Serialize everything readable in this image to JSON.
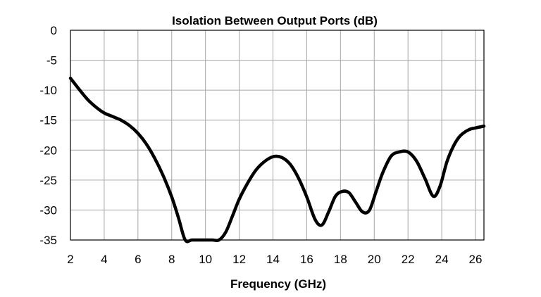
{
  "chart_data": {
    "type": "line",
    "title": "Isolation Between Output Ports (dB)",
    "xlabel": "Frequency (GHz)",
    "ylabel": "",
    "xlim": [
      2,
      26.5
    ],
    "ylim": [
      -35,
      0
    ],
    "x_ticks": [
      2,
      4,
      6,
      8,
      10,
      12,
      14,
      16,
      18,
      20,
      22,
      24,
      26
    ],
    "y_ticks": [
      0,
      -5,
      -10,
      -15,
      -20,
      -25,
      -30,
      -35
    ],
    "grid": true,
    "legend": "none",
    "series": [
      {
        "color": "#000000",
        "x": [
          2,
          2.5,
          3,
          3.5,
          4,
          4.5,
          5,
          5.5,
          6,
          6.5,
          7,
          7.5,
          8,
          8.4,
          8.8,
          9.2,
          9.8,
          10.4,
          10.8,
          11.2,
          11.6,
          12,
          12.5,
          13,
          13.5,
          14,
          14.5,
          15,
          15.5,
          16,
          16.5,
          16.9,
          17.3,
          17.7,
          18.1,
          18.5,
          18.9,
          19.3,
          19.7,
          20.1,
          20.5,
          21,
          21.5,
          22,
          22.5,
          23,
          23.5,
          23.9,
          24.3,
          24.7,
          25.1,
          25.6,
          26,
          26.5
        ],
        "y": [
          -8,
          -9.8,
          -11.5,
          -12.8,
          -13.8,
          -14.4,
          -15,
          -15.9,
          -17.2,
          -19,
          -21.4,
          -24.3,
          -27.8,
          -31.3,
          -35,
          -35,
          -35,
          -35,
          -35,
          -33.7,
          -31,
          -28.2,
          -25.5,
          -23.3,
          -21.9,
          -21.1,
          -21.2,
          -22.3,
          -24.6,
          -27.8,
          -31.6,
          -32.5,
          -30.3,
          -27.7,
          -26.9,
          -27.1,
          -28.7,
          -30.3,
          -30.1,
          -27,
          -23.8,
          -21,
          -20.3,
          -20.3,
          -21.8,
          -24.7,
          -27.7,
          -26,
          -22,
          -19.3,
          -17.6,
          -16.6,
          -16.3,
          -16
        ]
      }
    ]
  }
}
